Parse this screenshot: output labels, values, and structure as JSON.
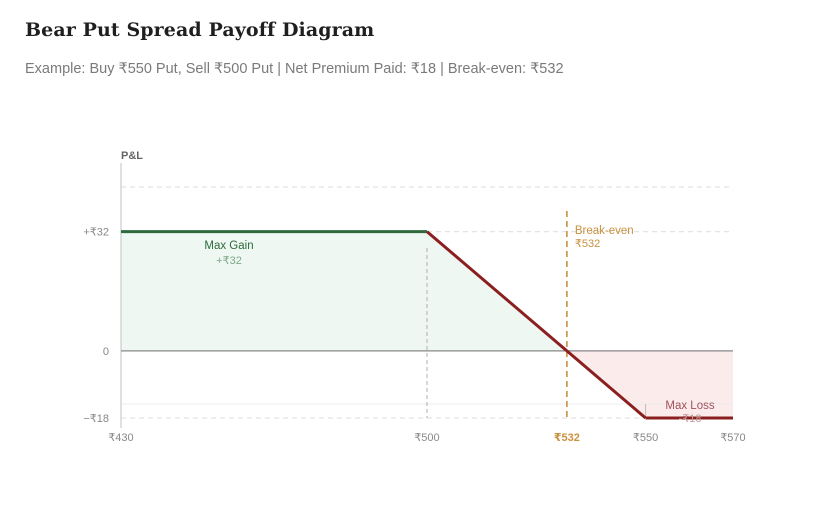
{
  "title": "Bear Put Spread Payoff Diagram",
  "subtitle": "Example: Buy ₹550 Put, Sell ₹500 Put | Net Premium Paid: ₹18 | Break-even: ₹532",
  "colors": {
    "profit_line": "#2d6a3e",
    "loss_line": "#8b1f1f",
    "profit_fill": "#eef7f1",
    "loss_fill": "#fbeceb",
    "breakeven": "#c8913e",
    "axis": "#cccccc",
    "zero_line": "#888888"
  },
  "chart_data": {
    "type": "line",
    "ylabel": "P&L",
    "xlim": [
      430,
      570
    ],
    "ylim": [
      -18,
      48
    ],
    "x_ticks": [
      {
        "value": 430,
        "label": "₹430"
      },
      {
        "value": 500,
        "label": "₹500"
      },
      {
        "value": 532,
        "label": "₹532"
      },
      {
        "value": 550,
        "label": "₹550"
      },
      {
        "value": 570,
        "label": "₹570"
      }
    ],
    "y_ticks": [
      {
        "value": 32,
        "label": "+₹32"
      },
      {
        "value": 0,
        "label": "0"
      },
      {
        "value": -18,
        "label": "−₹18"
      }
    ],
    "series": [
      {
        "x": [
          430,
          500,
          532,
          550,
          570
        ],
        "y": [
          32,
          32,
          0,
          -18,
          -18
        ]
      }
    ],
    "breakeven": {
      "x": 532,
      "label": "Break-even",
      "value_label": "₹532"
    },
    "annotations": [
      {
        "label": "Max Gain",
        "value_label": "+₹32",
        "x": 455,
        "y": 32
      },
      {
        "label": "Max Loss",
        "value_label": "-₹18",
        "x": 560,
        "y": -18
      }
    ]
  }
}
